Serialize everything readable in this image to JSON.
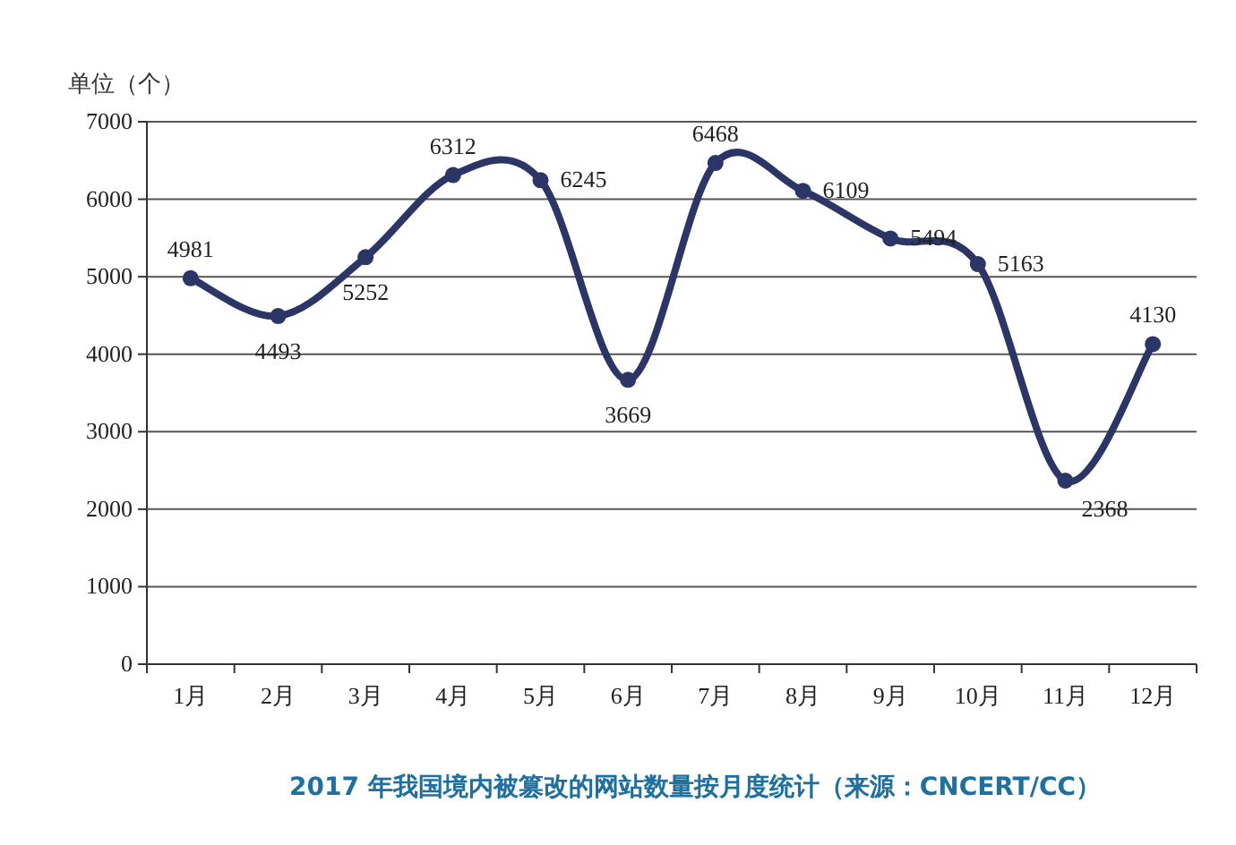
{
  "chart_data": {
    "type": "line",
    "title": "2017 年我国境内被篡改的网站数量按月度统计（来源：CNCERT/CC）",
    "ylabel": "单位（个）",
    "categories": [
      "1月",
      "2月",
      "3月",
      "4月",
      "5月",
      "6月",
      "7月",
      "8月",
      "9月",
      "10月",
      "11月",
      "12月"
    ],
    "series": [
      {
        "color": "#2b3566",
        "values": [
          4981,
          4493,
          5252,
          6312,
          6245,
          3669,
          6468,
          6109,
          5494,
          5163,
          2368,
          4130
        ]
      }
    ],
    "ylim": [
      0,
      7000
    ],
    "yticks": [
      0,
      1000,
      2000,
      3000,
      4000,
      5000,
      6000,
      7000
    ],
    "grid": "y",
    "marker": "circle",
    "line_style": "solid",
    "data_labels": true
  }
}
